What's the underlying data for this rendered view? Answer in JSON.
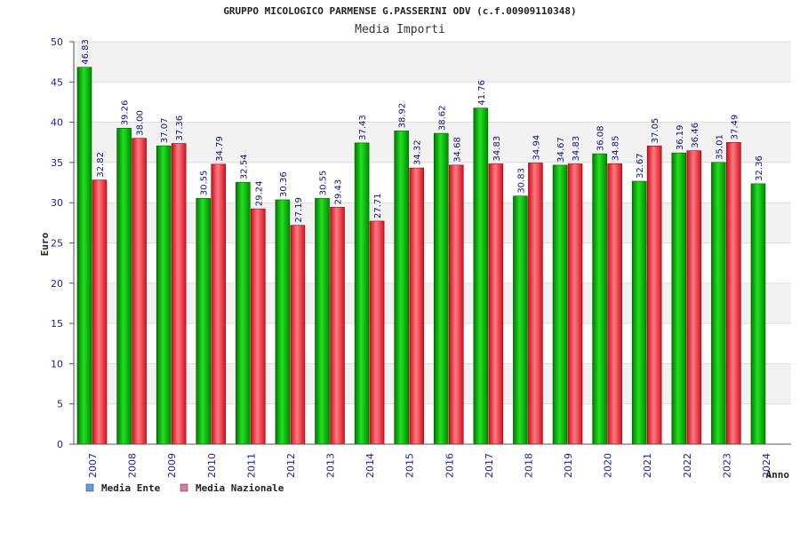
{
  "chart_data": {
    "type": "bar",
    "title": "GRUPPO MICOLOGICO PARMENSE G.PASSERINI ODV (c.f.00909110348)",
    "subtitle": "Media Importi",
    "xlabel": "Anno",
    "ylabel": "Euro",
    "ylim": [
      0,
      50
    ],
    "yticks": [
      0,
      5,
      10,
      15,
      20,
      25,
      30,
      35,
      40,
      45,
      50
    ],
    "categories": [
      "2007",
      "2008",
      "2009",
      "2010",
      "2011",
      "2012",
      "2013",
      "2014",
      "2015",
      "2016",
      "2017",
      "2018",
      "2019",
      "2020",
      "2021",
      "2022",
      "2023",
      "2024"
    ],
    "series": [
      {
        "name": "Media Ente",
        "color": "#00b000",
        "values": [
          46.83,
          39.26,
          37.07,
          30.55,
          32.54,
          30.36,
          30.55,
          37.43,
          38.92,
          38.62,
          41.76,
          30.83,
          34.67,
          36.08,
          32.67,
          36.19,
          35.01,
          32.36
        ],
        "labels": [
          "46.83",
          "39.26",
          "37.07",
          "30.55",
          "32.54",
          "30.36",
          "30.55",
          "37.43",
          "38.92",
          "38.62",
          "41.76",
          "30.83",
          "34.67",
          "36.08",
          "32.67",
          "36.19",
          "35.01",
          "32.36"
        ]
      },
      {
        "name": "Media Nazionale",
        "color": "#e8202a",
        "values": [
          32.82,
          38.0,
          37.36,
          34.79,
          29.24,
          27.19,
          29.43,
          27.71,
          34.32,
          34.68,
          34.83,
          34.94,
          34.83,
          34.85,
          37.05,
          36.46,
          37.49,
          null
        ],
        "labels": [
          "32.82",
          "38.00",
          "37.36",
          "34.79",
          "29.24",
          "27.19",
          "29.43",
          "27.71",
          "34.32",
          "34.68",
          "34.83",
          "34.94",
          "34.83",
          "34.85",
          "37.05",
          "36.46",
          "37.49",
          ""
        ]
      }
    ],
    "legend": [
      {
        "label": "Media Ente",
        "swatch_color": "#5aa0e8"
      },
      {
        "label": "Media Nazionale",
        "swatch_color": "#e07aa8"
      }
    ],
    "grid": true,
    "legend_position": "bottom-left"
  }
}
